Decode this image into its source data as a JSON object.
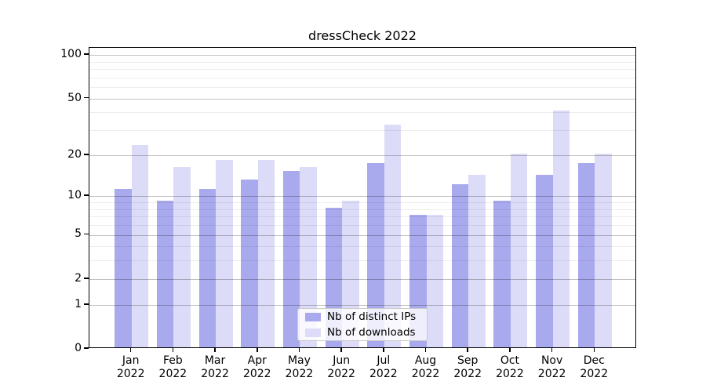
{
  "title": "dressCheck 2022",
  "chart_data": {
    "type": "bar",
    "categories": [
      "Jan",
      "Feb",
      "Mar",
      "Apr",
      "May",
      "Jun",
      "Jul",
      "Aug",
      "Sep",
      "Oct",
      "Nov",
      "Dec"
    ],
    "category_year": "2022",
    "series": [
      {
        "name": "Nb of distinct IPs",
        "color": "#a9a9ed",
        "values": [
          11,
          9,
          11,
          13,
          15,
          8,
          17,
          7,
          12,
          9,
          14,
          17
        ]
      },
      {
        "name": "Nb of downloads",
        "color": "#dcdcf8",
        "values": [
          23,
          16,
          18,
          18,
          16,
          9,
          32,
          7,
          14,
          20,
          40,
          20
        ]
      }
    ],
    "y_axis": {
      "scale": "log(1+x)",
      "tick_labels": [
        "0",
        "1",
        "2",
        "5",
        "10",
        "20",
        "50",
        "100"
      ],
      "ticks": [
        0,
        1,
        2,
        5,
        10,
        20,
        50,
        100
      ],
      "minor_gridlines": [
        3,
        4,
        6,
        7,
        8,
        9,
        30,
        40,
        60,
        70,
        80,
        90
      ],
      "ylim": [
        0,
        113
      ]
    },
    "grid": true,
    "legend_position": "lower center"
  },
  "colors": {
    "spine": "#000000",
    "major_grid": "rgba(0,0,0,0.24)",
    "minor_grid": "rgba(0,0,0,0.07)",
    "background": "#ffffff"
  }
}
